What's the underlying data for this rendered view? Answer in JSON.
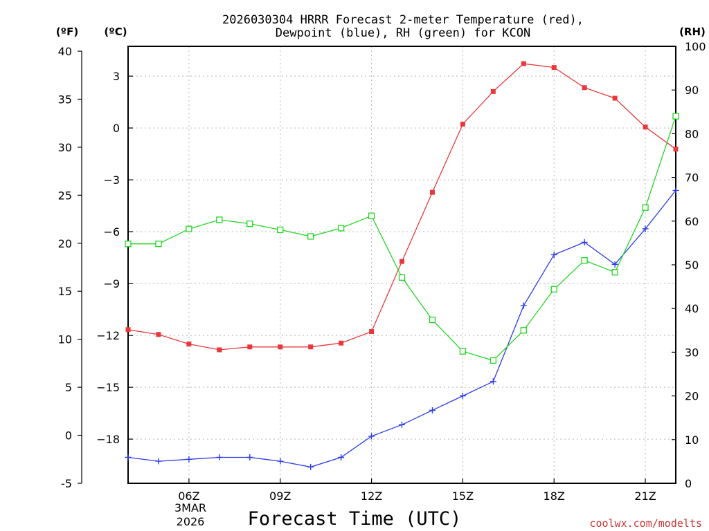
{
  "title_line1": "2026030304 HRRR Forecast 2-meter Temperature (red),",
  "title_line2": "Dewpoint (blue), RH (green) for KCON",
  "unit_f": "(ºF)",
  "unit_c": "(ºC)",
  "unit_rh": "(RH)",
  "credit": "coolwx.com/modelts",
  "colors": {
    "temp": "#e8383b",
    "dewpoint": "#2a3be8",
    "rh": "#22d522",
    "credit": "#cc3333"
  },
  "chart_data": {
    "type": "line",
    "title": "2026030304 HRRR Forecast 2-meter Temperature (red), Dewpoint (blue), RH (green) for KCON",
    "xlabel": "Forecast Time (UTC)",
    "x_hours_utc": [
      4,
      5,
      6,
      7,
      8,
      9,
      10,
      11,
      12,
      13,
      14,
      15,
      16,
      17,
      18,
      19,
      20,
      21,
      22
    ],
    "xlim": [
      4,
      22
    ],
    "x_ticks": [
      {
        "hour": 6,
        "label": "06Z"
      },
      {
        "hour": 9,
        "label": "09Z"
      },
      {
        "hour": 12,
        "label": "12Z"
      },
      {
        "hour": 15,
        "label": "15Z"
      },
      {
        "hour": 18,
        "label": "18Z"
      },
      {
        "hour": 21,
        "label": "21Z"
      }
    ],
    "date_label_line1": "3MAR",
    "date_label_line2": "2026",
    "left_f_axis": {
      "label": "ºF",
      "range": [
        -5,
        40
      ],
      "ticks": [
        40,
        35,
        30,
        25,
        20,
        15,
        10,
        5,
        0,
        -5
      ]
    },
    "left_c_axis": {
      "label": "ºC",
      "ticks": [
        3,
        0,
        -3,
        -6,
        -9,
        -12,
        -15,
        -18
      ]
    },
    "right_rh_axis": {
      "label": "RH",
      "range": [
        0,
        100
      ],
      "ticks": [
        100,
        90,
        80,
        70,
        60,
        50,
        40,
        30,
        20,
        10,
        0
      ]
    },
    "grid": true,
    "series": [
      {
        "name": "2-meter Temperature",
        "color": "red",
        "unit": "F",
        "marker": "filled-square",
        "values": [
          11,
          10.5,
          9.5,
          8.9,
          9.2,
          9.2,
          9.2,
          9.6,
          10.8,
          18.1,
          25.3,
          32.4,
          35.8,
          38.7,
          38.3,
          36.2,
          35.1,
          32.1,
          29.8
        ]
      },
      {
        "name": "Dewpoint",
        "color": "blue",
        "unit": "F",
        "marker": "plus",
        "values": [
          -2.3,
          -2.7,
          -2.5,
          -2.3,
          -2.3,
          -2.7,
          -3.3,
          -2.3,
          -0.1,
          1.1,
          2.6,
          4.1,
          5.6,
          13.5,
          18.8,
          20.1,
          17.8,
          21.5,
          25.5
        ]
      },
      {
        "name": "RH",
        "color": "green",
        "unit": "%",
        "marker": "open-square",
        "values": [
          54.8,
          54.8,
          58.2,
          60.3,
          59.4,
          58,
          56.5,
          58.4,
          61.2,
          47.1,
          37.4,
          30.2,
          28.1,
          35,
          44.4,
          51,
          48.3,
          63.1,
          84
        ]
      }
    ]
  }
}
